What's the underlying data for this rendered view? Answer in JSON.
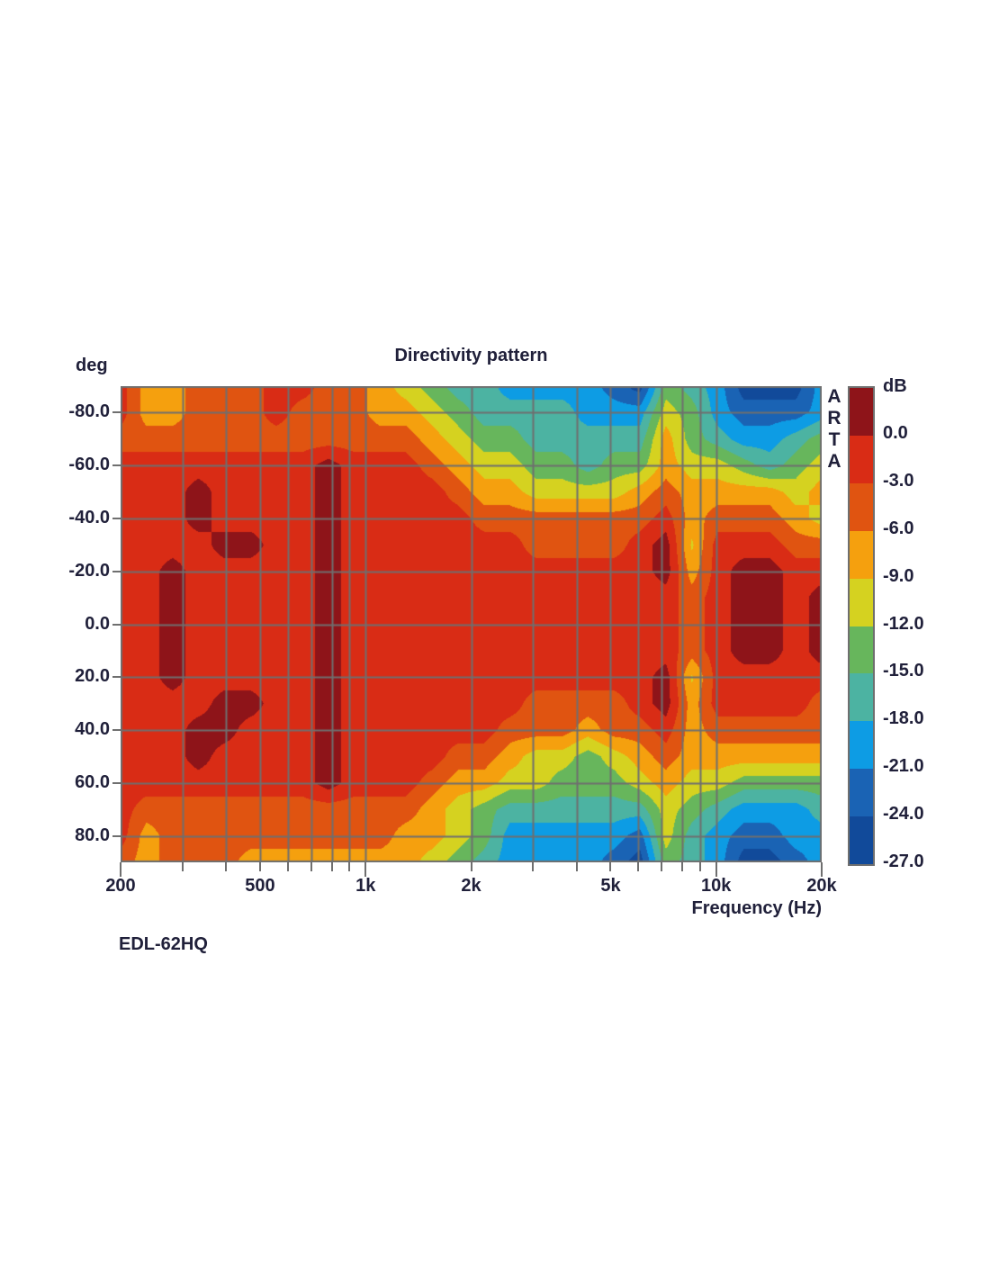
{
  "header": {
    "title": "Directivity pattern"
  },
  "watermark": {
    "text": "ARTA"
  },
  "footer": {
    "model": "EDL-62HQ"
  },
  "axes": {
    "y_label": "deg",
    "x_label": "Frequency (Hz)",
    "colorbar_label": "dB",
    "x_ticks": [
      {
        "f": 200,
        "label": "200",
        "major": true
      },
      {
        "f": 300
      },
      {
        "f": 400
      },
      {
        "f": 500,
        "label": "500"
      },
      {
        "f": 600
      },
      {
        "f": 700
      },
      {
        "f": 800
      },
      {
        "f": 900
      },
      {
        "f": 1000,
        "label": "1k",
        "major": true
      },
      {
        "f": 2000,
        "label": "2k"
      },
      {
        "f": 3000
      },
      {
        "f": 4000
      },
      {
        "f": 5000,
        "label": "5k"
      },
      {
        "f": 6000
      },
      {
        "f": 7000
      },
      {
        "f": 8000
      },
      {
        "f": 9000
      },
      {
        "f": 10000,
        "label": "10k",
        "major": true
      },
      {
        "f": 20000,
        "label": "20k",
        "major": true
      }
    ],
    "y_ticks": [
      {
        "a": -80,
        "label": "-80.0"
      },
      {
        "a": -60,
        "label": "-60.0"
      },
      {
        "a": -40,
        "label": "-40.0"
      },
      {
        "a": -20,
        "label": "-20.0"
      },
      {
        "a": 0,
        "label": "0.0"
      },
      {
        "a": 20,
        "label": "20.0"
      },
      {
        "a": 40,
        "label": "40.0"
      },
      {
        "a": 60,
        "label": "60.0"
      },
      {
        "a": 80,
        "label": "80.0"
      }
    ],
    "colorbar_tick_labels": [
      "0.0",
      "-3.0",
      "-6.0",
      "-9.0",
      "-12.0",
      "-15.0",
      "-18.0",
      "-21.0",
      "-24.0",
      "-27.0"
    ]
  },
  "style": {
    "label_color": "#20203a",
    "grid_color": "#6f6f6f",
    "frame_color": "#6f6f6f",
    "background": "#ffffff"
  },
  "chart_data": {
    "type": "heatmap",
    "title": "Directivity pattern",
    "xlabel": "Frequency (Hz)",
    "ylabel": "deg",
    "x_scale": "log",
    "x_range_hz": [
      200,
      20000
    ],
    "y_range_deg": [
      -90,
      90
    ],
    "grid_on": true,
    "colorbar": {
      "label": "dB",
      "levels_dB": [
        0,
        -3,
        -6,
        -9,
        -12,
        -15,
        -18,
        -21,
        -24,
        -27
      ],
      "colors": [
        "#8e1419",
        "#d92c15",
        "#e05411",
        "#f5a00e",
        "#d5d220",
        "#67b65c",
        "#4cb3a2",
        "#0d9ce4",
        "#1a63b4",
        "#114a9a"
      ]
    },
    "gridlines": {
      "freq_hz": [
        300,
        400,
        500,
        600,
        700,
        800,
        900,
        1000,
        2000,
        3000,
        4000,
        5000,
        6000,
        7000,
        8000,
        9000,
        10000
      ],
      "angle_deg": [
        -80,
        -60,
        -40,
        -20,
        0,
        20,
        40,
        60,
        80
      ]
    },
    "freqs_hz": [
      200,
      237,
      281,
      334,
      396,
      470,
      557,
      661,
      784,
      930,
      1103,
      1308,
      1551,
      1840,
      2183,
      2589,
      3071,
      3643,
      4321,
      5126,
      6080,
      7212,
      8555,
      10148,
      12036,
      14277,
      16935,
      20000
    ],
    "angles_deg": [
      -90,
      -80,
      -70,
      -60,
      -50,
      -40,
      -30,
      -20,
      -10,
      0,
      10,
      20,
      30,
      40,
      50,
      60,
      70,
      80,
      90
    ],
    "values_dB": [
      [
        -1.5,
        -7.5,
        -7.5,
        -4.5,
        -4.5,
        -4.5,
        -1.5,
        -1.5,
        -4.5,
        -4.5,
        -7.5,
        -10.5,
        -13.5,
        -16.5,
        -16.5,
        -19.5,
        -19.5,
        -19.5,
        -19.5,
        -22.5,
        -25.5,
        -13.5,
        -16.5,
        -19.5,
        -25.5,
        -25.5,
        -25.5,
        -19.5
      ],
      [
        -1.5,
        -7.5,
        -7.5,
        -4.5,
        -4.5,
        -4.5,
        -1.5,
        -4.5,
        -4.5,
        -4.5,
        -7.5,
        -7.5,
        -10.5,
        -13.5,
        -16.5,
        -16.5,
        -16.5,
        -16.5,
        -19.5,
        -19.5,
        -19.5,
        -10.5,
        -13.5,
        -19.5,
        -22.5,
        -22.5,
        -22.5,
        -19.5
      ],
      [
        -4.5,
        -4.5,
        -4.5,
        -4.5,
        -4.5,
        -4.5,
        -4.5,
        -4.5,
        -4.5,
        -4.5,
        -4.5,
        -4.5,
        -7.5,
        -10.5,
        -13.5,
        -13.5,
        -16.5,
        -16.5,
        -16.5,
        -16.5,
        -16.5,
        -7.5,
        -13.5,
        -16.5,
        -19.5,
        -19.5,
        -16.5,
        -13.5
      ],
      [
        -1.5,
        -1.5,
        -1.5,
        -1.5,
        -1.5,
        -1.5,
        -1.5,
        -1.5,
        1.5,
        -1.5,
        -1.5,
        -1.5,
        -4.5,
        -7.5,
        -10.5,
        -10.5,
        -13.5,
        -13.5,
        -16.5,
        -13.5,
        -13.5,
        -7.5,
        -10.5,
        -10.5,
        -13.5,
        -16.5,
        -13.5,
        -10.5
      ],
      [
        -1.5,
        -1.5,
        -1.5,
        1.5,
        -1.5,
        -1.5,
        -1.5,
        -1.5,
        1.5,
        -1.5,
        -1.5,
        -1.5,
        -1.5,
        -4.5,
        -7.5,
        -7.5,
        -10.5,
        -10.5,
        -10.5,
        -10.5,
        -7.5,
        -4.5,
        -7.5,
        -7.5,
        -7.5,
        -7.5,
        -10.5,
        -7.5
      ],
      [
        -1.5,
        -1.5,
        -1.5,
        1.5,
        -1.5,
        -1.5,
        -1.5,
        -1.5,
        1.5,
        -1.5,
        -1.5,
        -1.5,
        -1.5,
        -1.5,
        -4.5,
        -4.5,
        -4.5,
        -4.5,
        -4.5,
        -4.5,
        -4.5,
        -1.5,
        -7.5,
        -4.5,
        -4.5,
        -4.5,
        -7.5,
        -10.5
      ],
      [
        -1.5,
        -1.5,
        -1.5,
        -1.5,
        1.5,
        1.5,
        -1.5,
        -1.5,
        1.5,
        -1.5,
        -1.5,
        -1.5,
        -1.5,
        -1.5,
        -1.5,
        -1.5,
        -4.5,
        -4.5,
        -4.5,
        -4.5,
        -1.5,
        1.5,
        -9.5,
        -1.5,
        -1.5,
        -1.5,
        -4.5,
        -4.5
      ],
      [
        -1.5,
        -1.5,
        1.5,
        -1.5,
        -1.5,
        -1.5,
        -1.5,
        -1.5,
        1.5,
        -1.5,
        -1.5,
        -1.5,
        -1.5,
        -1.5,
        -1.5,
        -1.5,
        -1.5,
        -1.5,
        -1.5,
        -1.5,
        -1.5,
        1.5,
        -7.5,
        -1.5,
        1.5,
        1.5,
        -1.5,
        -1.5
      ],
      [
        -1.5,
        -1.5,
        1.5,
        -1.5,
        -1.5,
        -1.5,
        -1.5,
        -1.5,
        1.5,
        -1.5,
        -1.5,
        -1.5,
        -1.5,
        -1.5,
        -1.5,
        -1.5,
        -1.5,
        -1.5,
        -1.5,
        -1.5,
        -1.5,
        -1.5,
        -4.5,
        -1.5,
        1.5,
        1.5,
        -1.5,
        1.5
      ],
      [
        -1.5,
        -1.5,
        1.5,
        -1.5,
        -1.5,
        -1.5,
        -1.5,
        -1.5,
        1.5,
        -1.5,
        -1.5,
        -1.5,
        -1.5,
        -1.5,
        -1.5,
        -1.5,
        -1.5,
        -1.5,
        -1.5,
        -1.5,
        -1.5,
        -1.5,
        -4.5,
        -1.5,
        1.5,
        1.5,
        -1.5,
        1.5
      ],
      [
        -1.5,
        -1.5,
        1.5,
        -1.5,
        -1.5,
        -1.5,
        -1.5,
        -1.5,
        1.5,
        -1.5,
        -1.5,
        -1.5,
        -1.5,
        -1.5,
        -1.5,
        -1.5,
        -1.5,
        -1.5,
        -1.5,
        -1.5,
        -1.5,
        -1.5,
        -4.5,
        -1.5,
        1.5,
        1.5,
        -1.5,
        1.5
      ],
      [
        -1.5,
        -1.5,
        1.5,
        -1.5,
        -1.5,
        -1.5,
        -1.5,
        -1.5,
        1.5,
        -1.5,
        -1.5,
        -1.5,
        -1.5,
        -1.5,
        -1.5,
        -1.5,
        -1.5,
        -1.5,
        -1.5,
        -1.5,
        -1.5,
        1.5,
        -9.5,
        -1.5,
        -1.5,
        -1.5,
        -1.5,
        -1.5
      ],
      [
        -1.5,
        -1.5,
        -1.5,
        -1.5,
        1.5,
        1.5,
        -1.5,
        -1.5,
        1.5,
        -1.5,
        -1.5,
        -1.5,
        -1.5,
        -1.5,
        -1.5,
        -1.5,
        -4.5,
        -4.5,
        -4.5,
        -4.5,
        -1.5,
        1.5,
        -7.5,
        -1.5,
        -1.5,
        -1.5,
        -1.5,
        -4.5
      ],
      [
        -1.5,
        -1.5,
        -1.5,
        1.5,
        1.5,
        -1.5,
        -1.5,
        -1.5,
        1.5,
        -1.5,
        -1.5,
        -1.5,
        -1.5,
        -1.5,
        -1.5,
        -4.5,
        -4.5,
        -4.5,
        -7.5,
        -4.5,
        -4.5,
        -1.5,
        -7.5,
        -4.5,
        -4.5,
        -4.5,
        -4.5,
        -4.5
      ],
      [
        -1.5,
        -1.5,
        -1.5,
        1.5,
        -1.5,
        -1.5,
        -1.5,
        -1.5,
        1.5,
        -1.5,
        -1.5,
        -1.5,
        -1.5,
        -4.5,
        -4.5,
        -7.5,
        -10.5,
        -10.5,
        -13.5,
        -10.5,
        -7.5,
        -4.5,
        -7.5,
        -7.5,
        -7.5,
        -7.5,
        -7.5,
        -7.5
      ],
      [
        -1.5,
        -1.5,
        -1.5,
        -1.5,
        -1.5,
        -1.5,
        -1.5,
        -1.5,
        1.5,
        -1.5,
        -1.5,
        -1.5,
        -4.5,
        -7.5,
        -7.5,
        -10.5,
        -10.5,
        -13.5,
        -13.5,
        -13.5,
        -10.5,
        -7.5,
        -10.5,
        -10.5,
        -13.5,
        -13.5,
        -13.5,
        -13.5
      ],
      [
        -1.5,
        -4.5,
        -4.5,
        -4.5,
        -4.5,
        -4.5,
        -4.5,
        -4.5,
        -4.5,
        -4.5,
        -4.5,
        -4.5,
        -7.5,
        -10.5,
        -13.5,
        -16.5,
        -16.5,
        -16.5,
        -16.5,
        -16.5,
        -16.5,
        -10.5,
        -13.5,
        -16.5,
        -19.5,
        -19.5,
        -19.5,
        -16.5
      ],
      [
        -1.5,
        -7.5,
        -4.5,
        -4.5,
        -4.5,
        -4.5,
        -4.5,
        -4.5,
        -4.5,
        -4.5,
        -4.5,
        -7.5,
        -7.5,
        -10.5,
        -13.5,
        -19.5,
        -19.5,
        -19.5,
        -19.5,
        -19.5,
        -22.5,
        -10.5,
        -16.5,
        -19.5,
        -22.5,
        -22.5,
        -19.5,
        -19.5
      ],
      [
        -4.5,
        -7.5,
        -4.5,
        -4.5,
        -4.5,
        -7.5,
        -7.5,
        -7.5,
        -7.5,
        -7.5,
        -7.5,
        -7.5,
        -10.5,
        -13.5,
        -16.5,
        -19.5,
        -19.5,
        -19.5,
        -19.5,
        -22.5,
        -25.5,
        -13.5,
        -16.5,
        -19.5,
        -25.5,
        -25.5,
        -22.5,
        -19.5
      ]
    ],
    "model": "EDL-62HQ"
  }
}
